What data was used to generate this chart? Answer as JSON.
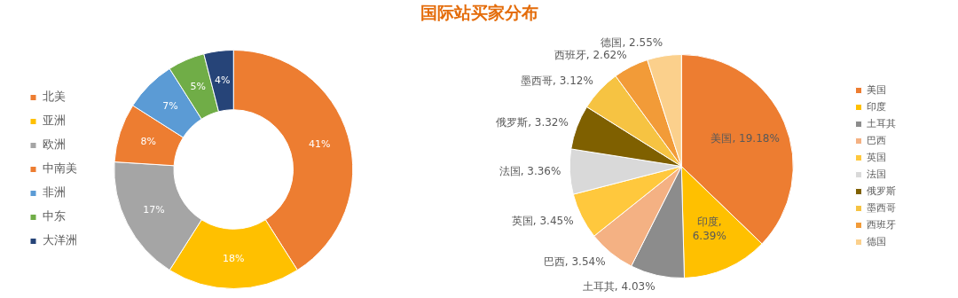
{
  "chart_data": [
    {
      "type": "donut",
      "title": "国际站买家分布",
      "categories": [
        "北美",
        "亚洲",
        "欧洲",
        "中南美",
        "非洲",
        "中东",
        "大洋洲"
      ],
      "values": [
        41,
        18,
        17,
        8,
        7,
        5,
        4
      ],
      "value_labels": [
        "41%",
        "18%",
        "17%",
        "8%",
        "7%",
        "5%",
        "4%"
      ],
      "colors": [
        "#ed7d31",
        "#ffc000",
        "#a5a5a5",
        "#ed7d31",
        "#5b9bd5",
        "#70ad47",
        "#264478"
      ],
      "legend": "left"
    },
    {
      "type": "pie",
      "categories": [
        "美国",
        "印度",
        "土耳其",
        "巴西",
        "英国",
        "法国",
        "俄罗斯",
        "墨西哥",
        "西班牙",
        "德国"
      ],
      "values": [
        19.18,
        6.39,
        4.03,
        3.54,
        3.45,
        3.36,
        3.32,
        3.12,
        2.62,
        2.55
      ],
      "value_labels": [
        "美国, 19.18%",
        "印度, 6.39%",
        "土耳其, 4.03%",
        "巴西, 3.54%",
        "英国, 3.45%",
        "法国, 3.36%",
        "俄罗斯, 3.32%",
        "墨西哥, 3.12%",
        "西班牙, 2.62%",
        "德国, 2.55%"
      ],
      "colors": [
        "#ed7d31",
        "#ffc000",
        "#8c8c8c",
        "#f4b183",
        "#ffc83d",
        "#d9d9d9",
        "#7f6000",
        "#f6c342",
        "#f29b38",
        "#fbd08c"
      ],
      "legend": "right"
    }
  ]
}
